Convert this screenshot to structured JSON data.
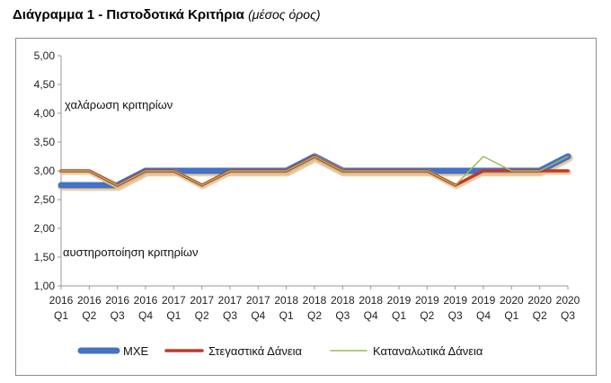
{
  "header": {
    "title": "Διάγραμμα 1 - Πιστοδοτικά Κριτήρια",
    "subtitle": "(μέσος όρος)"
  },
  "chart_data": {
    "type": "line",
    "categories": [
      {
        "year": "2016",
        "q": "Q1"
      },
      {
        "year": "2016",
        "q": "Q2"
      },
      {
        "year": "2016",
        "q": "Q3"
      },
      {
        "year": "2016",
        "q": "Q4"
      },
      {
        "year": "2017",
        "q": "Q1"
      },
      {
        "year": "2017",
        "q": "Q2"
      },
      {
        "year": "2017",
        "q": "Q3"
      },
      {
        "year": "2017",
        "q": "Q4"
      },
      {
        "year": "2018",
        "q": "Q1"
      },
      {
        "year": "2018",
        "q": "Q2"
      },
      {
        "year": "2018",
        "q": "Q3"
      },
      {
        "year": "2018",
        "q": "Q4"
      },
      {
        "year": "2019",
        "q": "Q1"
      },
      {
        "year": "2019",
        "q": "Q2"
      },
      {
        "year": "2019",
        "q": "Q3"
      },
      {
        "year": "2019",
        "q": "Q4"
      },
      {
        "year": "2020",
        "q": "Q1"
      },
      {
        "year": "2020",
        "q": "Q2"
      },
      {
        "year": "2020",
        "q": "Q3"
      }
    ],
    "ylim": [
      1.0,
      5.0
    ],
    "yticks": [
      "5,00",
      "4,50",
      "4,00",
      "3,50",
      "3,00",
      "2,50",
      "2,00",
      "1,50",
      "1,00"
    ],
    "grid": false,
    "legend_position": "bottom",
    "annotations": {
      "upper": "χαλάρωση κριτηρίων",
      "lower": "αυστηροποίηση κριτηρίων"
    },
    "series": [
      {
        "name": "ΜΧΕ",
        "color": "#4472c4",
        "values": [
          2.75,
          2.75,
          2.75,
          3.0,
          3.0,
          3.0,
          3.0,
          3.0,
          3.0,
          3.25,
          3.0,
          3.0,
          3.0,
          3.0,
          3.0,
          3.0,
          3.0,
          3.0,
          3.25
        ]
      },
      {
        "name": "Στεγαστικά Δάνεια",
        "color": "#c0392b",
        "values": [
          3.0,
          3.0,
          2.75,
          3.0,
          3.0,
          2.75,
          3.0,
          3.0,
          3.0,
          3.25,
          3.0,
          3.0,
          3.0,
          3.0,
          2.75,
          3.0,
          3.0,
          3.0,
          3.0
        ]
      },
      {
        "name": "Καταναλωτικά Δάνεια",
        "color": "#9bbb59",
        "values": [
          3.0,
          3.0,
          2.75,
          3.0,
          3.0,
          2.75,
          3.0,
          3.0,
          3.0,
          3.25,
          3.0,
          3.0,
          3.0,
          3.0,
          2.75,
          3.25,
          3.0,
          3.0,
          3.25
        ]
      }
    ]
  }
}
